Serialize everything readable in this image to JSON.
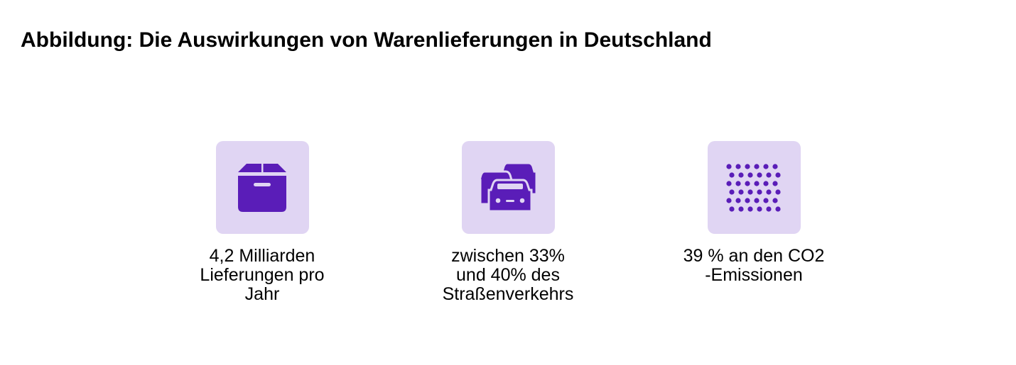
{
  "title": "Abbildung: Die Auswirkungen von Warenlieferungen in Deutschland",
  "accent_color": "#5a1db8",
  "icon_background": "#e0d5f3",
  "stats": [
    {
      "icon": "box-icon",
      "label": "4,2 Milliarden\nLieferungen pro\nJahr"
    },
    {
      "icon": "cars-traffic-icon",
      "label": "zwischen 33%\nund 40% des\nStraßenverkehrs"
    },
    {
      "icon": "emission-dots-icon",
      "label": "39 % an den CO2\n-Emissionen"
    }
  ]
}
